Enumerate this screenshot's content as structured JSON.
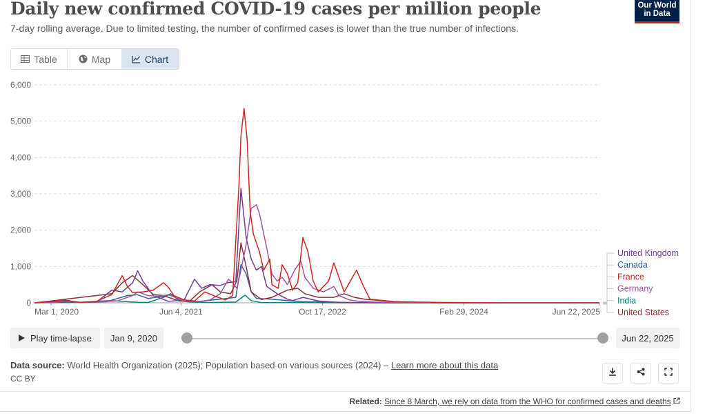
{
  "header": {
    "title": "Daily new confirmed COVID-19 cases per million people",
    "subtitle": "7-day rolling average. Due to limited testing, the number of confirmed cases is lower than the true number of infections.",
    "logo_line1": "Our World",
    "logo_line2": "in Data"
  },
  "tabs": [
    {
      "label": "Table",
      "icon": "table-icon"
    },
    {
      "label": "Map",
      "icon": "globe-icon"
    },
    {
      "label": "Chart",
      "icon": "line-chart-icon",
      "active": true
    }
  ],
  "controls": {
    "play_label": "Play time-lapse",
    "start_date": "Jan 9, 2020",
    "end_date": "Jun 22, 2025"
  },
  "footer": {
    "source_label": "Data source:",
    "source_text": "World Health Organization (2025); Population based on various sources (2024) – ",
    "source_link": "Learn more about this data",
    "license": "CC BY",
    "related_label": "Related:",
    "related_link": "Since 8 March, we rely on data from the WHO for confirmed cases and deaths"
  },
  "chart_data": {
    "type": "line",
    "title": "Daily new confirmed COVID-19 cases per million people",
    "ylabel": "",
    "xlabel": "",
    "ylim": [
      0,
      6000
    ],
    "yticks": [
      {
        "value": 0,
        "label": "0"
      },
      {
        "value": 1000,
        "label": "1,000"
      },
      {
        "value": 2000,
        "label": "2,000"
      },
      {
        "value": 3000,
        "label": "3,000"
      },
      {
        "value": 4000,
        "label": "4,000"
      },
      {
        "value": 5000,
        "label": "5,000"
      },
      {
        "value": 6000,
        "label": "6,000"
      }
    ],
    "xlim": [
      2020.0,
      2025.48
    ],
    "xticks": [
      {
        "value": 2020.16,
        "label": "Mar 1, 2020"
      },
      {
        "value": 2021.42,
        "label": "Jun 4, 2021"
      },
      {
        "value": 2022.79,
        "label": "Oct 17, 2022"
      },
      {
        "value": 2024.16,
        "label": "Feb 29, 2024"
      },
      {
        "value": 2025.47,
        "label": "Jun 22, 2025"
      }
    ],
    "series": [
      {
        "name": "United Kingdom",
        "color": "#6d3e91",
        "points": [
          [
            2020.0,
            0
          ],
          [
            2020.2,
            60
          ],
          [
            2020.3,
            70
          ],
          [
            2020.45,
            10
          ],
          [
            2020.6,
            20
          ],
          [
            2020.75,
            350
          ],
          [
            2020.85,
            300
          ],
          [
            2020.95,
            550
          ],
          [
            2021.0,
            880
          ],
          [
            2021.05,
            600
          ],
          [
            2021.15,
            200
          ],
          [
            2021.3,
            40
          ],
          [
            2021.45,
            80
          ],
          [
            2021.55,
            650
          ],
          [
            2021.62,
            400
          ],
          [
            2021.7,
            500
          ],
          [
            2021.8,
            480
          ],
          [
            2021.88,
            560
          ],
          [
            2021.95,
            580
          ],
          [
            2022.0,
            3150
          ],
          [
            2022.05,
            1800
          ],
          [
            2022.1,
            1200
          ],
          [
            2022.15,
            900
          ],
          [
            2022.2,
            1000
          ],
          [
            2022.25,
            450
          ],
          [
            2022.35,
            250
          ],
          [
            2022.45,
            100
          ],
          [
            2022.5,
            60
          ],
          [
            2022.6,
            150
          ],
          [
            2022.75,
            50
          ],
          [
            2022.9,
            20
          ],
          [
            2023.0,
            10
          ],
          [
            2023.3,
            5
          ],
          [
            2023.5,
            0
          ],
          [
            2025.47,
            0
          ]
        ]
      },
      {
        "name": "Canada",
        "color": "#3360a9",
        "points": [
          [
            2020.0,
            0
          ],
          [
            2020.3,
            40
          ],
          [
            2020.45,
            10
          ],
          [
            2020.7,
            30
          ],
          [
            2020.9,
            200
          ],
          [
            2021.0,
            220
          ],
          [
            2021.1,
            120
          ],
          [
            2021.25,
            180
          ],
          [
            2021.3,
            230
          ],
          [
            2021.45,
            40
          ],
          [
            2021.6,
            40
          ],
          [
            2021.8,
            100
          ],
          [
            2021.95,
            150
          ],
          [
            2022.0,
            1050
          ],
          [
            2022.05,
            800
          ],
          [
            2022.1,
            300
          ],
          [
            2022.15,
            120
          ],
          [
            2022.3,
            100
          ],
          [
            2022.45,
            60
          ],
          [
            2022.6,
            30
          ],
          [
            2022.8,
            25
          ],
          [
            2023.0,
            10
          ],
          [
            2023.3,
            0
          ],
          [
            2025.47,
            0
          ]
        ]
      },
      {
        "name": "France",
        "color": "#ce261e",
        "points": [
          [
            2020.0,
            0
          ],
          [
            2020.3,
            60
          ],
          [
            2020.45,
            10
          ],
          [
            2020.6,
            40
          ],
          [
            2020.75,
            230
          ],
          [
            2020.85,
            750
          ],
          [
            2020.9,
            450
          ],
          [
            2020.95,
            280
          ],
          [
            2021.05,
            300
          ],
          [
            2021.15,
            350
          ],
          [
            2021.25,
            550
          ],
          [
            2021.3,
            420
          ],
          [
            2021.35,
            200
          ],
          [
            2021.45,
            80
          ],
          [
            2021.55,
            50
          ],
          [
            2021.65,
            300
          ],
          [
            2021.75,
            180
          ],
          [
            2021.85,
            80
          ],
          [
            2021.92,
            200
          ],
          [
            2021.98,
            3200
          ],
          [
            2022.0,
            4600
          ],
          [
            2022.03,
            5350
          ],
          [
            2022.06,
            4500
          ],
          [
            2022.09,
            2500
          ],
          [
            2022.12,
            1900
          ],
          [
            2022.18,
            1400
          ],
          [
            2022.22,
            900
          ],
          [
            2022.28,
            1200
          ],
          [
            2022.3,
            500
          ],
          [
            2022.36,
            400
          ],
          [
            2022.4,
            1050
          ],
          [
            2022.45,
            800
          ],
          [
            2022.5,
            350
          ],
          [
            2022.55,
            550
          ],
          [
            2022.6,
            1800
          ],
          [
            2022.65,
            1400
          ],
          [
            2022.7,
            600
          ],
          [
            2022.75,
            300
          ],
          [
            2022.85,
            600
          ],
          [
            2022.9,
            1100
          ],
          [
            2022.95,
            700
          ],
          [
            2023.0,
            300
          ],
          [
            2023.08,
            700
          ],
          [
            2023.12,
            900
          ],
          [
            2023.18,
            500
          ],
          [
            2023.25,
            100
          ],
          [
            2023.35,
            70
          ],
          [
            2023.5,
            30
          ],
          [
            2023.7,
            20
          ],
          [
            2024.0,
            10
          ],
          [
            2024.5,
            0
          ],
          [
            2025.47,
            0
          ]
        ]
      },
      {
        "name": "Germany",
        "color": "#a2559c",
        "points": [
          [
            2020.0,
            0
          ],
          [
            2020.35,
            30
          ],
          [
            2020.45,
            10
          ],
          [
            2020.8,
            50
          ],
          [
            2020.95,
            200
          ],
          [
            2021.0,
            300
          ],
          [
            2021.1,
            200
          ],
          [
            2021.2,
            180
          ],
          [
            2021.3,
            220
          ],
          [
            2021.45,
            50
          ],
          [
            2021.6,
            30
          ],
          [
            2021.7,
            80
          ],
          [
            2021.8,
            250
          ],
          [
            2021.88,
            650
          ],
          [
            2021.92,
            550
          ],
          [
            2021.96,
            400
          ],
          [
            2022.0,
            900
          ],
          [
            2022.05,
            1600
          ],
          [
            2022.1,
            2600
          ],
          [
            2022.15,
            2700
          ],
          [
            2022.18,
            2450
          ],
          [
            2022.25,
            1500
          ],
          [
            2022.3,
            800
          ],
          [
            2022.35,
            600
          ],
          [
            2022.4,
            700
          ],
          [
            2022.45,
            500
          ],
          [
            2022.52,
            900
          ],
          [
            2022.58,
            1150
          ],
          [
            2022.62,
            700
          ],
          [
            2022.7,
            400
          ],
          [
            2022.8,
            300
          ],
          [
            2022.9,
            450
          ],
          [
            2022.95,
            200
          ],
          [
            2023.05,
            80
          ],
          [
            2023.15,
            40
          ],
          [
            2023.3,
            20
          ],
          [
            2023.6,
            10
          ],
          [
            2024.0,
            0
          ],
          [
            2025.47,
            0
          ]
        ]
      },
      {
        "name": "India",
        "color": "#00847e",
        "points": [
          [
            2020.0,
            0
          ],
          [
            2020.4,
            10
          ],
          [
            2020.65,
            50
          ],
          [
            2020.75,
            60
          ],
          [
            2020.85,
            40
          ],
          [
            2021.0,
            15
          ],
          [
            2021.1,
            10
          ],
          [
            2021.25,
            150
          ],
          [
            2021.32,
            250
          ],
          [
            2021.4,
            60
          ],
          [
            2021.5,
            25
          ],
          [
            2021.7,
            10
          ],
          [
            2021.95,
            20
          ],
          [
            2022.04,
            210
          ],
          [
            2022.1,
            60
          ],
          [
            2022.2,
            5
          ],
          [
            2022.5,
            10
          ],
          [
            2022.6,
            5
          ],
          [
            2023.0,
            0
          ],
          [
            2025.47,
            0
          ]
        ]
      },
      {
        "name": "United States",
        "color": "#883039",
        "points": [
          [
            2020.0,
            0
          ],
          [
            2020.2,
            60
          ],
          [
            2020.3,
            100
          ],
          [
            2020.45,
            150
          ],
          [
            2020.6,
            200
          ],
          [
            2020.75,
            250
          ],
          [
            2020.85,
            550
          ],
          [
            2020.95,
            750
          ],
          [
            2021.05,
            500
          ],
          [
            2021.15,
            230
          ],
          [
            2021.25,
            200
          ],
          [
            2021.4,
            50
          ],
          [
            2021.5,
            40
          ],
          [
            2021.6,
            300
          ],
          [
            2021.72,
            500
          ],
          [
            2021.8,
            300
          ],
          [
            2021.9,
            250
          ],
          [
            2021.96,
            600
          ],
          [
            2022.0,
            1650
          ],
          [
            2022.05,
            1000
          ],
          [
            2022.1,
            300
          ],
          [
            2022.2,
            90
          ],
          [
            2022.3,
            150
          ],
          [
            2022.45,
            350
          ],
          [
            2022.55,
            400
          ],
          [
            2022.62,
            250
          ],
          [
            2022.75,
            150
          ],
          [
            2022.9,
            150
          ],
          [
            2023.0,
            250
          ],
          [
            2023.1,
            150
          ],
          [
            2023.2,
            100
          ],
          [
            2023.35,
            60
          ],
          [
            2023.5,
            30
          ],
          [
            2023.65,
            15
          ],
          [
            2023.9,
            0
          ],
          [
            2025.47,
            0
          ]
        ]
      }
    ]
  }
}
